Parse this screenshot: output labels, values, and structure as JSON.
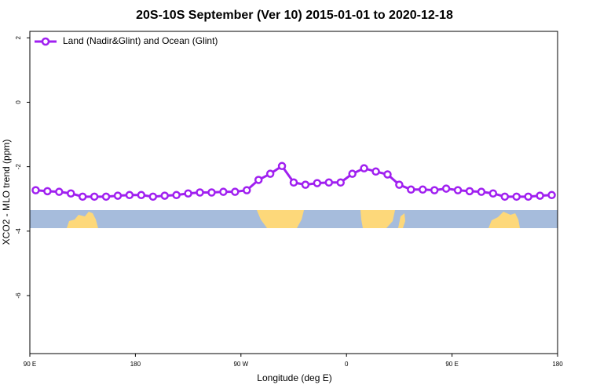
{
  "chart_data": {
    "type": "line",
    "title": "20S-10S September (Ver 10)   2015-01-01 to 2020-12-18",
    "x_label": "Longitude (deg E)",
    "y_label": "XCO2 - MLO trend (ppm)",
    "x": [
      95,
      105,
      115,
      125,
      135,
      145,
      155,
      165,
      175,
      185,
      195,
      205,
      215,
      225,
      235,
      245,
      255,
      265,
      275,
      285,
      295,
      305,
      315,
      325,
      335,
      345,
      355,
      365,
      375,
      385,
      395,
      405,
      415,
      425,
      435,
      445,
      455,
      465,
      475,
      485,
      495,
      505,
      515,
      525,
      535
    ],
    "series": [
      {
        "name": "Land (Nadir&Glint) and Ocean (Glint)",
        "color": "#a020f0",
        "values": [
          -2.73,
          -2.76,
          -2.78,
          -2.83,
          -2.93,
          -2.93,
          -2.93,
          -2.9,
          -2.88,
          -2.88,
          -2.93,
          -2.9,
          -2.88,
          -2.83,
          -2.8,
          -2.8,
          -2.78,
          -2.78,
          -2.73,
          -2.41,
          -2.22,
          -1.98,
          -2.49,
          -2.56,
          -2.51,
          -2.49,
          -2.49,
          -2.22,
          -2.05,
          -2.15,
          -2.24,
          -2.56,
          -2.71,
          -2.71,
          -2.73,
          -2.68,
          -2.73,
          -2.76,
          -2.78,
          -2.83,
          -2.93,
          -2.93,
          -2.93,
          -2.9,
          -2.88
        ]
      }
    ],
    "xlim": [
      90,
      540
    ],
    "xticks": [
      {
        "value": 90,
        "label": "90 E"
      },
      {
        "value": 180,
        "label": "180"
      },
      {
        "value": 270,
        "label": "90 W"
      },
      {
        "value": 360,
        "label": "0"
      },
      {
        "value": 450,
        "label": "90 E"
      },
      {
        "value": 540,
        "label": "180"
      }
    ],
    "ylim": [
      -7.8,
      2.2
    ],
    "yticks": [
      2,
      0,
      -2,
      -4,
      -6
    ],
    "legend": "top-left"
  }
}
